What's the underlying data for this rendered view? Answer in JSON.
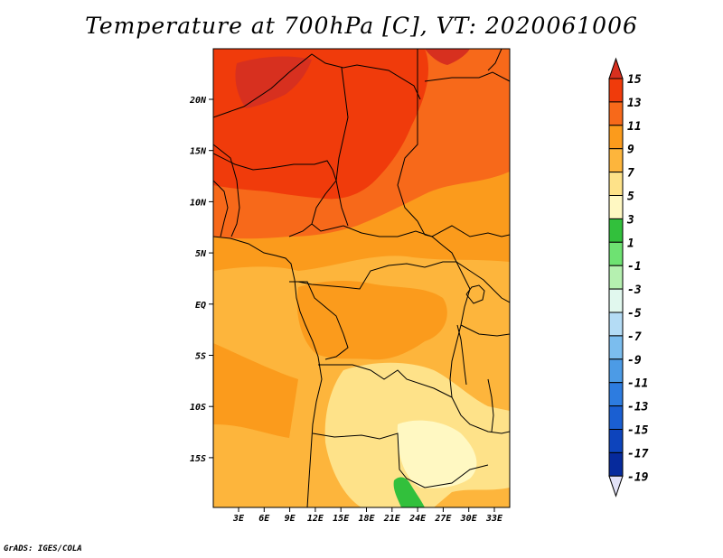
{
  "title": "Temperature at 700hPa [C], VT: 2020061006",
  "credit": "GrADS: IGES/COLA",
  "map": {
    "lon_labels": [
      "3E",
      "6E",
      "9E",
      "12E",
      "15E",
      "18E",
      "21E",
      "24E",
      "27E",
      "30E",
      "33E"
    ],
    "lat_labels": [
      "20N",
      "15N",
      "10N",
      "5N",
      "EQ",
      "5S",
      "10S",
      "15S"
    ]
  },
  "colorbar": {
    "labels": [
      "15",
      "13",
      "11",
      "9",
      "7",
      "5",
      "3",
      "1",
      "-1",
      "-3",
      "-5",
      "-7",
      "-9",
      "-11",
      "-13",
      "-15",
      "-17",
      "-19"
    ],
    "colors": {
      "above15": "#d7301f",
      "13_15": "#f03b0b",
      "11_13": "#f7691a",
      "9_11": "#fb9b1c",
      "7_9": "#fdb53c",
      "5_7": "#fee289",
      "3_5": "#fff8c2",
      "1_3": "#32c03c",
      "m1_1": "#6ee272",
      "m3_m1": "#b5f0b0",
      "m5_m3": "#e1f8ee",
      "m7_m5": "#b4dcf5",
      "m9_m7": "#7bbdee",
      "m11_m9": "#4c9be6",
      "m13_m11": "#2d7ce0",
      "m15_m13": "#1a5fd2",
      "m17_m15": "#0d44bc",
      "m19_m17": "#062a9c",
      "below_m19": "#07166a",
      "bottom_arrow": "#e1e1f7"
    }
  }
}
